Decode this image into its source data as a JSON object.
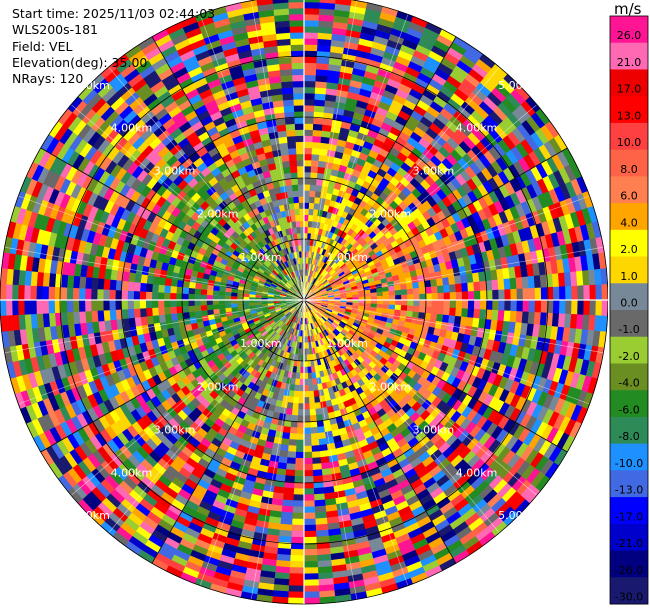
{
  "info": {
    "start_time": "Start time: 2025/11/03 02:44:03",
    "site": "WLS200s-181",
    "field": "Field: VEL",
    "elevation": "Elevation(deg): 35.00",
    "nrays": "NRays: 120"
  },
  "range_labels": [
    "1.00km",
    "2.00km",
    "3.00km",
    "4.00km",
    "5.00km"
  ],
  "colorbar": {
    "unit": "m/s",
    "levels": [
      {
        "label": "26.0",
        "color": "#ff1493"
      },
      {
        "label": "21.0",
        "color": "#ff69b4"
      },
      {
        "label": "17.0",
        "color": "#ee0000"
      },
      {
        "label": "13.0",
        "color": "#ff0000"
      },
      {
        "label": "10.0",
        "color": "#ff4040"
      },
      {
        "label": "8.0",
        "color": "#ff6347"
      },
      {
        "label": "6.0",
        "color": "#ff7f50"
      },
      {
        "label": "4.0",
        "color": "#ffa500"
      },
      {
        "label": "2.0",
        "color": "#ffff00"
      },
      {
        "label": "1.0",
        "color": "#ffd700"
      },
      {
        "label": "0.0",
        "color": "#778899"
      },
      {
        "label": "-1.0",
        "color": "#696969"
      },
      {
        "label": "-2.0",
        "color": "#9acd32"
      },
      {
        "label": "-4.0",
        "color": "#6b8e23"
      },
      {
        "label": "-6.0",
        "color": "#228b22"
      },
      {
        "label": "-8.0",
        "color": "#2e8b57"
      },
      {
        "label": "-10.0",
        "color": "#1e90ff"
      },
      {
        "label": "-13.0",
        "color": "#4169e1"
      },
      {
        "label": "-17.0",
        "color": "#0000ff"
      },
      {
        "label": "-21.0",
        "color": "#0000cd"
      },
      {
        "label": "-26.0",
        "color": "#000080"
      },
      {
        "label": "-30.0",
        "color": "#191970"
      }
    ]
  }
}
